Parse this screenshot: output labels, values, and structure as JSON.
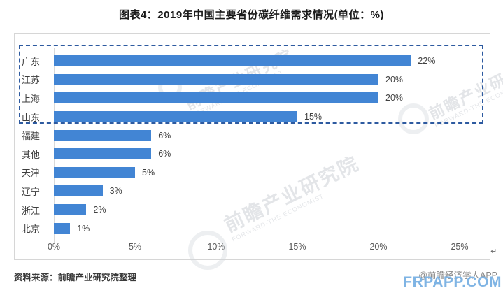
{
  "page": {
    "title": "图表4：2019年中国主要省份碳纤维需求情况(单位：%)"
  },
  "chart_data": {
    "type": "bar",
    "orientation": "horizontal",
    "title": "图表4：2019年中国主要省份碳纤维需求情况(单位：%)",
    "categories": [
      "广东",
      "江苏",
      "上海",
      "山东",
      "福建",
      "其他",
      "天津",
      "辽宁",
      "浙江",
      "北京"
    ],
    "values": [
      22,
      20,
      20,
      15,
      6,
      6,
      5,
      3,
      2,
      1
    ],
    "value_labels": [
      "22%",
      "20%",
      "20%",
      "15%",
      "6%",
      "6%",
      "5%",
      "3%",
      "2%",
      "1%"
    ],
    "x_ticks": {
      "labels": [
        "0%",
        "5%",
        "10%",
        "15%",
        "20%",
        "25%"
      ],
      "values": [
        0,
        5,
        10,
        15,
        20,
        25
      ]
    },
    "xlim": [
      0,
      25
    ],
    "grid": "off",
    "legend": "none",
    "colors": {
      "bar": "#4285d4",
      "highlight_border": "#2d5aa0"
    },
    "highlight_group": [
      "广东",
      "江苏",
      "上海",
      "山东"
    ]
  },
  "footer": {
    "source": "资料来源：前瞻产业研究院整理",
    "credit": "@前瞻经济学人APP",
    "overlay": "FRPAPP.COM"
  },
  "watermark": {
    "diagonal_text": "前瞻产业研究院",
    "diagonal_subtext": "FORWARD-THE ECONOMIST",
    "return_mark": "↵"
  }
}
